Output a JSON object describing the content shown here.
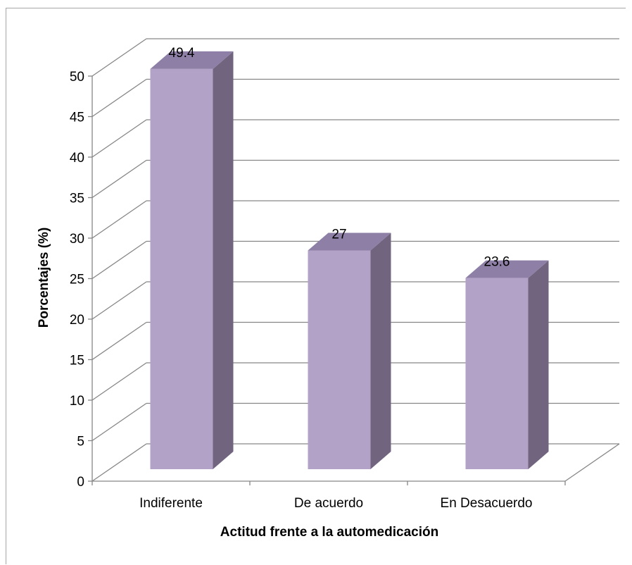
{
  "chart_data": {
    "type": "bar",
    "style": "3d-column",
    "categories": [
      "Indiferente",
      "De acuerdo",
      "En Desacuerdo"
    ],
    "values": [
      49.4,
      27,
      23.6
    ],
    "data_labels": [
      "49.4",
      "27",
      "23.6"
    ],
    "title": "",
    "xlabel": "Actitud frente a la automedicación",
    "ylabel": "Porcentajes (%)",
    "ylim": [
      0,
      50
    ],
    "yticks": [
      0,
      5,
      10,
      15,
      20,
      25,
      30,
      35,
      40,
      45,
      50
    ],
    "grid": true,
    "legend": "none",
    "colors": {
      "bar_front": "#b3a2c7",
      "bar_side": "#71647f",
      "bar_top": "#8e7fa6",
      "grid": "#868686",
      "axis": "#868686"
    }
  }
}
